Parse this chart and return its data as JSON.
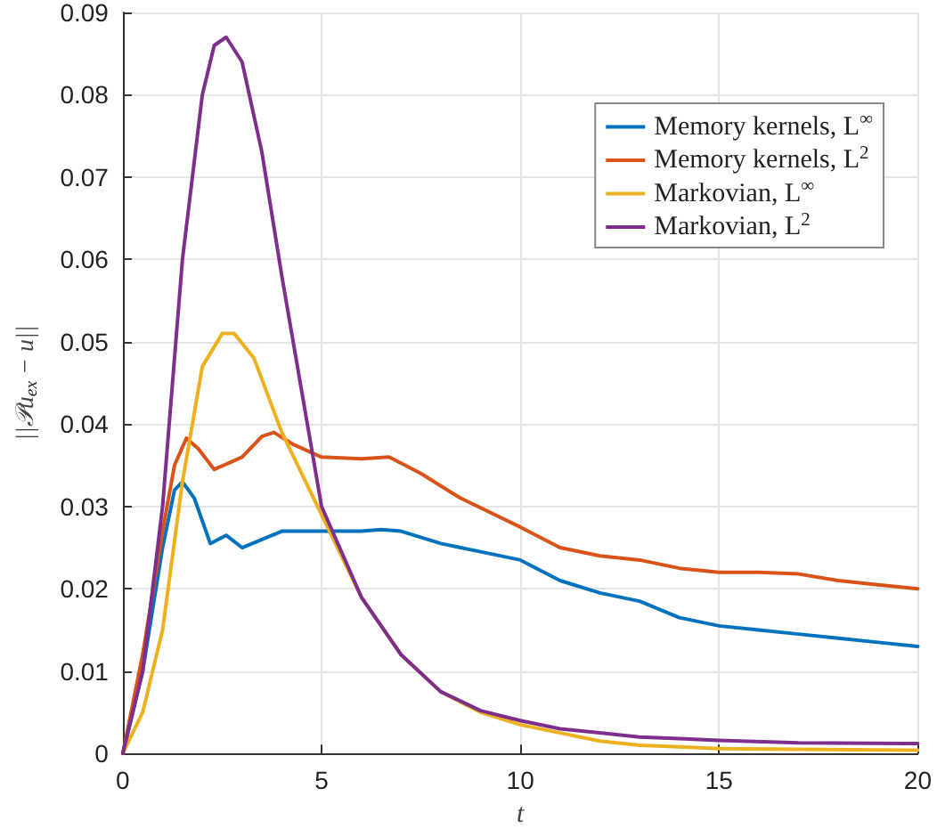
{
  "chart_data": {
    "type": "line",
    "xlabel": "t",
    "ylabel": "||𝒫u$_{ex}$ − u||",
    "xlim": [
      0,
      20
    ],
    "xticks": [
      0,
      5,
      10,
      15,
      20
    ],
    "ylim": [
      0,
      0.09
    ],
    "yticks": [
      0,
      0.01,
      0.02,
      0.03,
      0.04,
      0.05,
      0.06,
      0.07,
      0.08,
      0.09
    ],
    "grid": true,
    "legend": "top right",
    "marker": "none",
    "line_style": "solid",
    "x": [
      0,
      0.5,
      1,
      1.3,
      1.5,
      1.8,
      2.2,
      2.6,
      3,
      3.5,
      4,
      5,
      6,
      6.5,
      7,
      8,
      9,
      10,
      11,
      12,
      13,
      14,
      15,
      16,
      17,
      18,
      19,
      20
    ],
    "series": [
      {
        "name": "Memory kernels, L$^{∞}$",
        "color": "#0072bd",
        "values": [
          0,
          0.01,
          0.025,
          0.032,
          0.033,
          0.031,
          0.0255,
          0.0265,
          0.025,
          0.026,
          0.027,
          0.027,
          0.027,
          0.0272,
          0.027,
          0.0255,
          0.0245,
          0.0235,
          0.021,
          0.0195,
          0.0185,
          0.0165,
          0.0155,
          0.015,
          0.0145,
          0.014,
          0.0135,
          0.013
        ]
      },
      {
        "name": "Memory kernels, L$^{2}$",
        "color": "#d95319",
        "x": [
          0,
          0.5,
          1,
          1.3,
          1.6,
          1.9,
          2.3,
          3,
          3.5,
          3.8,
          4.3,
          5,
          6,
          6.7,
          7.5,
          8.5,
          10,
          11,
          12,
          13,
          14,
          15,
          16,
          17,
          18,
          19,
          20
        ],
        "values": [
          0,
          0.012,
          0.027,
          0.035,
          0.0383,
          0.037,
          0.0345,
          0.036,
          0.0385,
          0.039,
          0.0375,
          0.036,
          0.0358,
          0.036,
          0.034,
          0.031,
          0.0275,
          0.025,
          0.024,
          0.0235,
          0.0225,
          0.022,
          0.022,
          0.0218,
          0.021,
          0.0205,
          0.02
        ]
      },
      {
        "name": "Markovian, L$^{∞}$",
        "color": "#edb120",
        "x": [
          0,
          0.5,
          1,
          1.5,
          2,
          2.5,
          2.8,
          3.3,
          4,
          5,
          6,
          7,
          8,
          9,
          10,
          11,
          12,
          13,
          14,
          15,
          17,
          20
        ],
        "values": [
          0,
          0.005,
          0.015,
          0.033,
          0.047,
          0.051,
          0.051,
          0.048,
          0.039,
          0.029,
          0.019,
          0.012,
          0.0075,
          0.005,
          0.0035,
          0.0025,
          0.0015,
          0.001,
          0.0008,
          0.0006,
          0.0005,
          0.0004
        ]
      },
      {
        "name": "Markovian, L$^{2}$",
        "color": "#7e2f8e",
        "x": [
          0,
          0.5,
          1,
          1.5,
          2,
          2.3,
          2.6,
          3,
          3.5,
          4,
          5,
          6,
          7,
          8,
          9,
          10,
          11,
          12,
          13,
          14,
          15,
          17,
          20
        ],
        "values": [
          0,
          0.01,
          0.03,
          0.06,
          0.08,
          0.086,
          0.087,
          0.084,
          0.073,
          0.058,
          0.03,
          0.019,
          0.012,
          0.0075,
          0.0052,
          0.004,
          0.003,
          0.0025,
          0.002,
          0.0018,
          0.0016,
          0.0013,
          0.0012
        ]
      }
    ]
  }
}
